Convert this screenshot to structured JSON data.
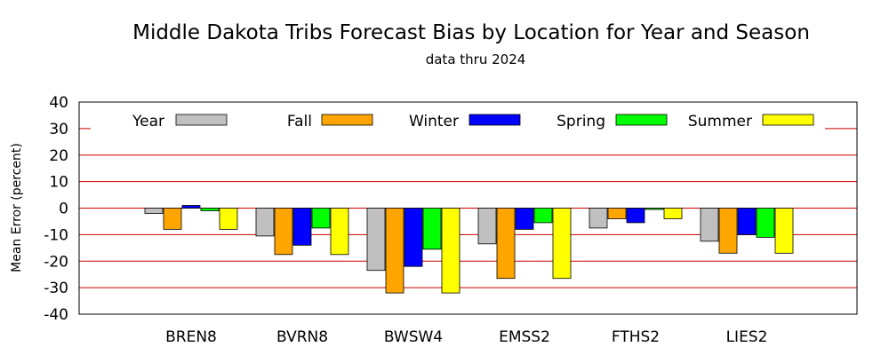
{
  "chart_data": {
    "type": "bar",
    "title": "Middle Dakota Tribs Forecast Bias by Location for Year and Season",
    "subtitle": "data thru 2024",
    "ylabel": "Mean Error (percent)",
    "xlabel": "",
    "ylim": [
      -40,
      40
    ],
    "yticks": [
      40,
      30,
      20,
      10,
      0,
      -10,
      -20,
      -30,
      -40
    ],
    "grid": "horizontal",
    "legend_position": "top",
    "categories": [
      "BREN8",
      "BVRN8",
      "BWSW4",
      "EMSS2",
      "FTHS2",
      "LIES2"
    ],
    "series": [
      {
        "name": "Year",
        "color": "#c0c0c0",
        "values": [
          -2,
          -10.5,
          -23.5,
          -13.5,
          -7.5,
          -12.5
        ]
      },
      {
        "name": "Fall",
        "color": "#ffa500",
        "values": [
          -8,
          -17.5,
          -32,
          -26.5,
          -4,
          -17
        ]
      },
      {
        "name": "Winter",
        "color": "#0000ff",
        "values": [
          1,
          -14,
          -22,
          -8,
          -5.5,
          -10
        ]
      },
      {
        "name": "Spring",
        "color": "#00ff00",
        "values": [
          -1,
          -7.5,
          -15.5,
          -5.5,
          -0.5,
          -11
        ]
      },
      {
        "name": "Summer",
        "color": "#ffff00",
        "values": [
          -8,
          -17.5,
          -32,
          -26.5,
          -4,
          -17
        ]
      }
    ],
    "gridline_color": "#cc0000"
  }
}
